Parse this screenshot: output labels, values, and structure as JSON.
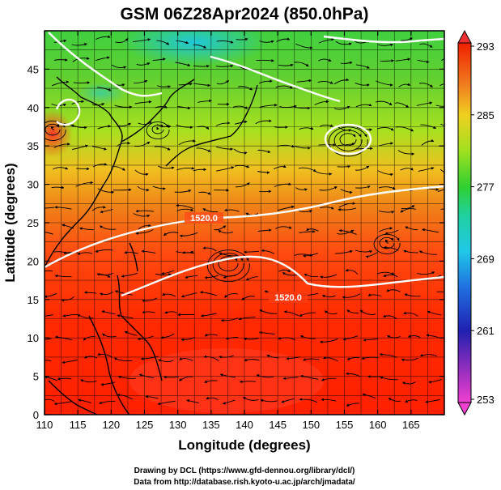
{
  "title": "GSM 06Z28Apr2024 (850.0hPa)",
  "xlabel": "Longitude (degrees)",
  "ylabel": "Latitude  (degrees)",
  "x_ticks": [
    "110",
    "115",
    "120",
    "125",
    "130",
    "135",
    "140",
    "145",
    "150",
    "155",
    "160",
    "165"
  ],
  "y_ticks": [
    "0",
    "5",
    "10",
    "15",
    "20",
    "25",
    "30",
    "35",
    "40",
    "45"
  ],
  "colorbar": {
    "ticks": [
      "253",
      "261",
      "269",
      "277",
      "285",
      "293"
    ],
    "min": 253,
    "max": 293
  },
  "contour_labels": [
    "1520.0",
    "1520.0"
  ],
  "credits": {
    "line1": "Drawing by DCL (https://www.gfd-dennou.org/library/dcl/)",
    "line2": "Data from http://database.rish.kyoto-u.ac.jp/arch/jmadata/"
  },
  "map_data": {
    "lon_range": [
      110,
      170
    ],
    "lat_range": [
      0,
      50
    ],
    "field": "temperature (K) shaded, geopotential height contours, streamlines",
    "colors": {
      "cold_magenta": "#e040e0",
      "blue": "#2040c0",
      "cyan": "#20c0e0",
      "green": "#40c820",
      "yellow_green": "#b8e020",
      "orange": "#f0a020",
      "red": "#ff2a00"
    }
  }
}
